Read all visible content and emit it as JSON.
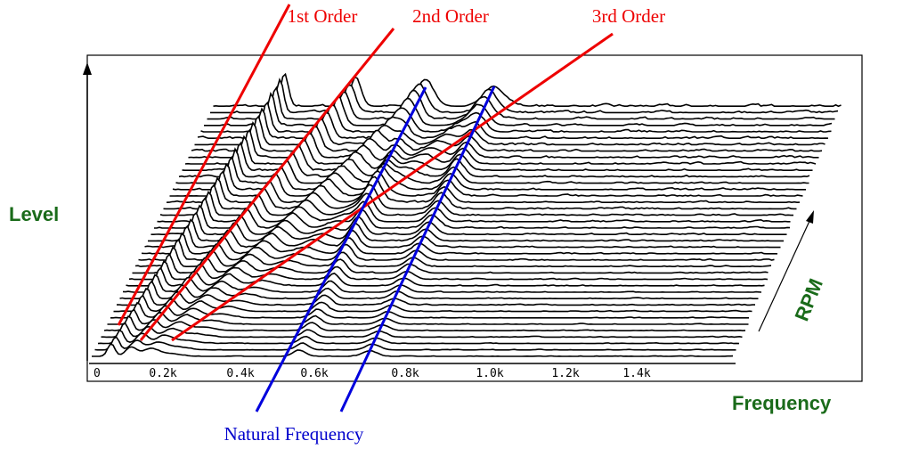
{
  "axis_labels": {
    "y": "Level",
    "x": "Frequency",
    "depth": "RPM"
  },
  "x_ticks": [
    "0",
    "0.2k",
    "0.4k",
    "0.6k",
    "0.8k",
    "1.0k",
    "1.2k",
    "1.4k"
  ],
  "orders": [
    "1st Order",
    "2nd Order",
    "3rd Order"
  ],
  "natural_frequency": "Natural Frequency"
}
